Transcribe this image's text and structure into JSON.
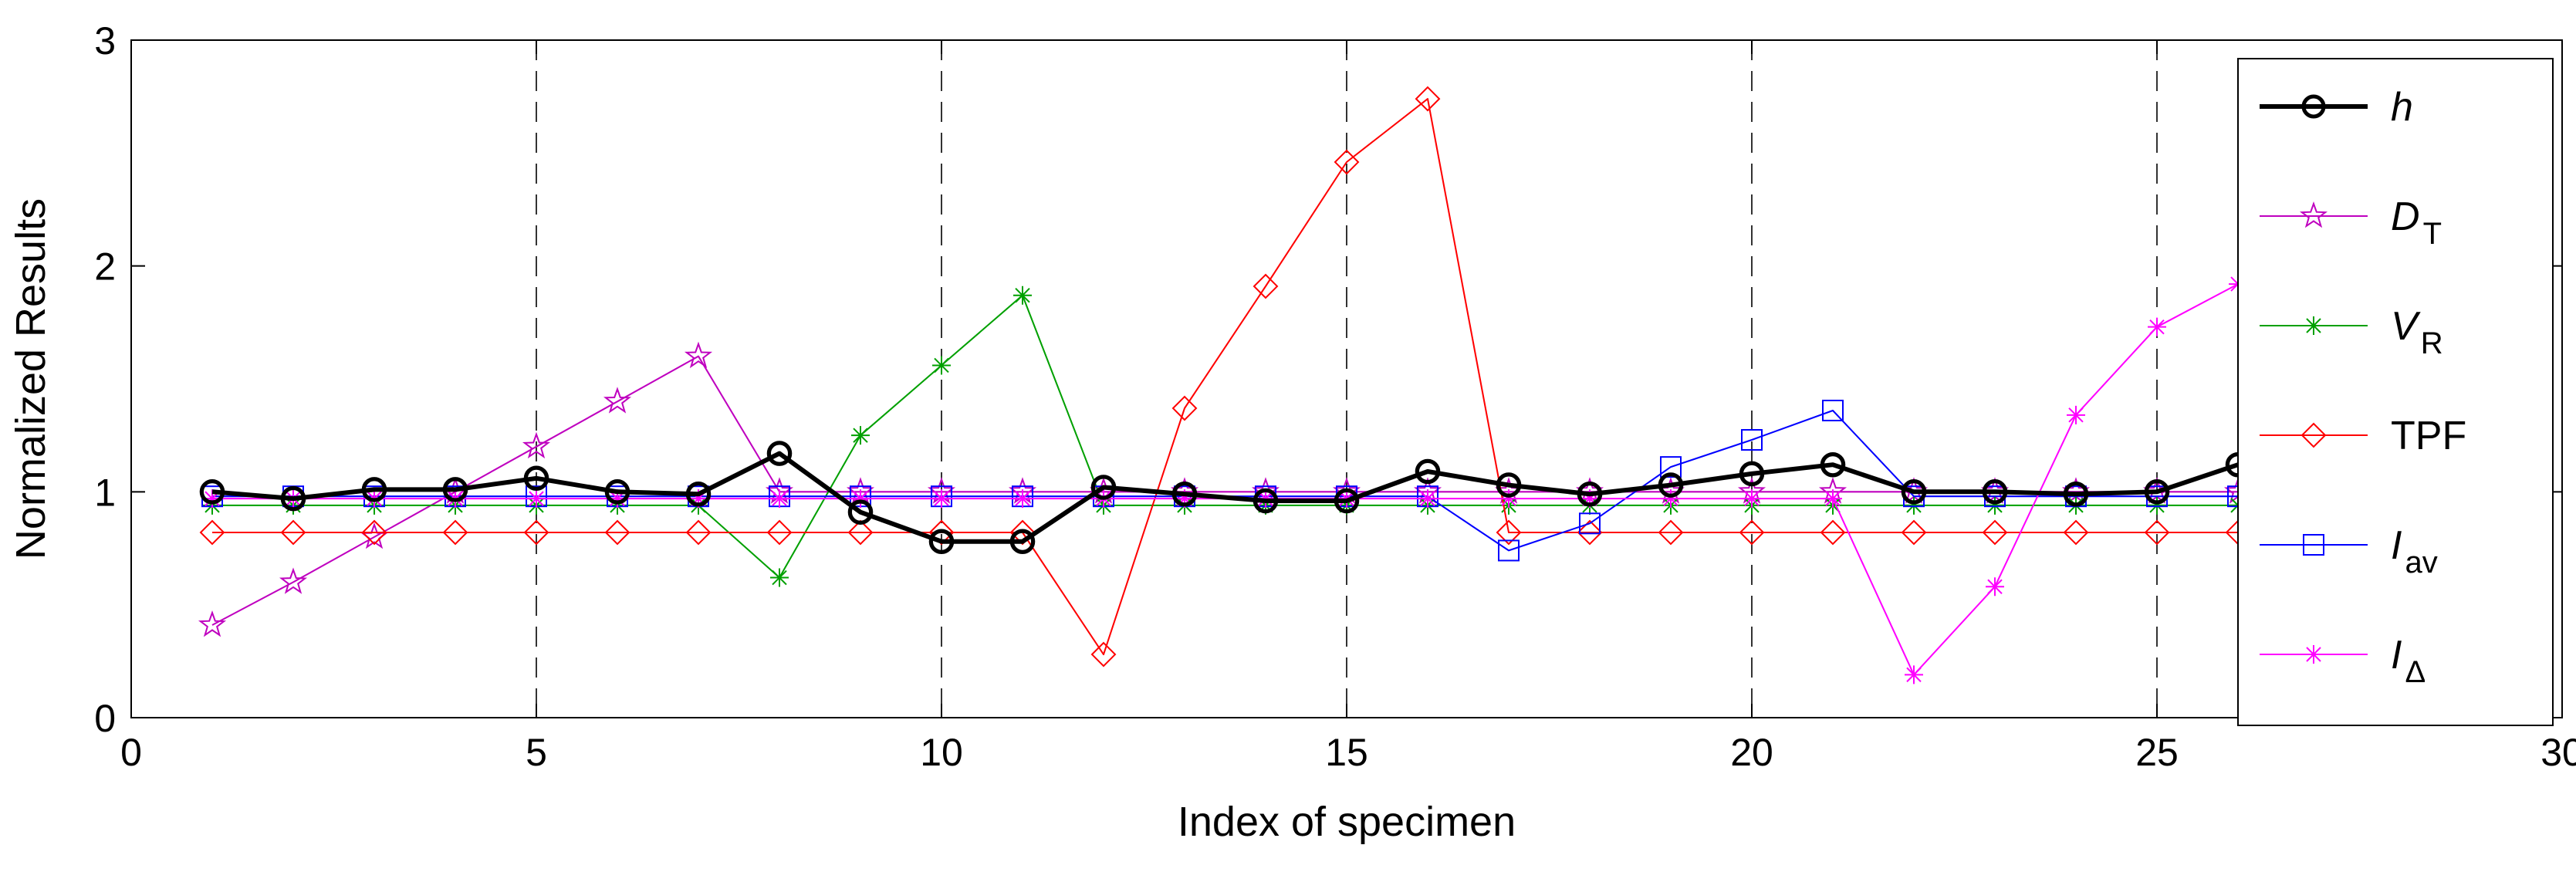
{
  "chart_data": {
    "type": "line",
    "title": "",
    "xlabel": "Index of specimen",
    "ylabel": "Normalized Results",
    "xlim": [
      0,
      30
    ],
    "ylim": [
      0,
      3
    ],
    "xticks": [
      0,
      5,
      10,
      15,
      20,
      25,
      30
    ],
    "yticks": [
      0,
      1,
      2,
      3
    ],
    "xtick_labels": [
      "0",
      "5",
      "10",
      "15",
      "20",
      "25",
      "30"
    ],
    "ytick_labels": [
      "0",
      "1",
      "2",
      "3"
    ],
    "vertical_dashed_lines_at": [
      5,
      10,
      15,
      20,
      25
    ],
    "legend_position": "right",
    "x": [
      1,
      2,
      3,
      4,
      5,
      6,
      7,
      8,
      9,
      10,
      11,
      12,
      13,
      14,
      15,
      16,
      17,
      18,
      19,
      20,
      21,
      22,
      23,
      24,
      25,
      26
    ],
    "series": [
      {
        "name": "h",
        "main": "h",
        "sub": "",
        "italic": true,
        "color": "#000000",
        "marker": "circle",
        "width": 3,
        "values": [
          1.0,
          0.97,
          1.01,
          1.01,
          1.06,
          1.0,
          0.99,
          1.17,
          0.91,
          0.78,
          0.78,
          1.02,
          0.99,
          0.96,
          0.96,
          1.09,
          1.03,
          0.99,
          1.03,
          1.08,
          1.12,
          1.0,
          1.0,
          0.99,
          1.0,
          1.12
        ]
      },
      {
        "name": "DT",
        "main": "D",
        "sub": "T",
        "italic": true,
        "color": "#bf00bf",
        "marker": "star",
        "width": 1.2,
        "values": [
          0.41,
          0.6,
          0.8,
          1.0,
          1.2,
          1.4,
          1.6,
          1.0,
          1.0,
          1.0,
          1.0,
          1.0,
          1.0,
          1.0,
          1.0,
          1.0,
          1.0,
          1.0,
          1.0,
          1.0,
          1.0,
          1.0,
          1.0,
          1.0,
          1.0,
          1.0
        ]
      },
      {
        "name": "VR",
        "main": "V",
        "sub": "R",
        "italic": true,
        "color": "#00a000",
        "marker": "asterisk",
        "width": 1.2,
        "values": [
          0.94,
          0.94,
          0.94,
          0.94,
          0.94,
          0.94,
          0.94,
          0.62,
          1.25,
          1.56,
          1.87,
          0.94,
          0.94,
          0.94,
          0.94,
          0.94,
          0.94,
          0.94,
          0.94,
          0.94,
          0.94,
          0.94,
          0.94,
          0.94,
          0.94,
          0.94
        ]
      },
      {
        "name": "TPF",
        "main": "TPF",
        "sub": "",
        "italic": false,
        "color": "#ff0000",
        "marker": "diamond",
        "width": 1.2,
        "values": [
          0.82,
          0.82,
          0.82,
          0.82,
          0.82,
          0.82,
          0.82,
          0.82,
          0.82,
          0.82,
          0.82,
          0.28,
          1.37,
          1.91,
          2.46,
          2.74,
          0.82,
          0.82,
          0.82,
          0.82,
          0.82,
          0.82,
          0.82,
          0.82,
          0.82,
          0.82
        ]
      },
      {
        "name": "Iav",
        "main": "I",
        "sub": "av",
        "italic": true,
        "color": "#0000ff",
        "marker": "square",
        "width": 1.2,
        "values": [
          0.98,
          0.98,
          0.98,
          0.98,
          0.98,
          0.98,
          0.98,
          0.98,
          0.98,
          0.98,
          0.98,
          0.98,
          0.98,
          0.98,
          0.98,
          0.98,
          0.74,
          0.86,
          1.11,
          1.23,
          1.36,
          0.98,
          0.98,
          0.98,
          0.98,
          0.98
        ]
      },
      {
        "name": "IΔ",
        "main": "I",
        "sub": "Δ",
        "italic": true,
        "color": "#ff00ff",
        "marker": "asterisk",
        "width": 1.2,
        "values": [
          0.97,
          0.97,
          0.97,
          0.97,
          0.97,
          0.97,
          0.97,
          0.97,
          0.97,
          0.97,
          0.97,
          0.97,
          0.97,
          0.97,
          0.97,
          0.97,
          0.97,
          0.97,
          0.97,
          0.97,
          0.97,
          0.19,
          0.58,
          1.34,
          1.73,
          1.92
        ]
      }
    ]
  }
}
